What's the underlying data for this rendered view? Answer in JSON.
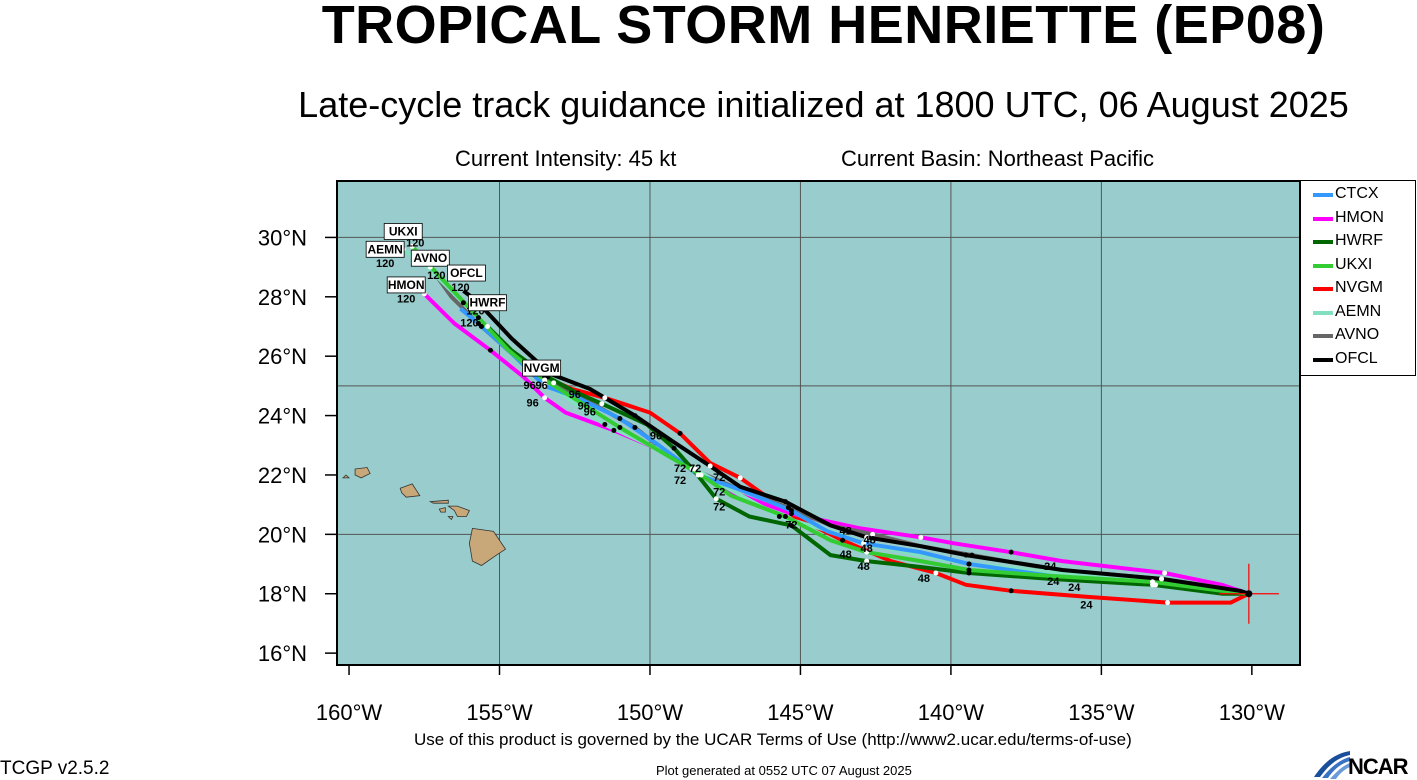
{
  "header": {
    "title": "TROPICAL STORM HENRIETTE (EP08)",
    "subtitle": "Late-cycle track guidance initialized at 1800 UTC, 06 August 2025",
    "intensity": "Current Intensity: 45 kt",
    "basin": "Current Basin: Northeast Pacific"
  },
  "axes": {
    "lon_ticks": [
      "160°W",
      "155°W",
      "150°W",
      "145°W",
      "140°W",
      "135°W",
      "130°W"
    ],
    "lat_ticks": [
      "30°N",
      "28°N",
      "26°N",
      "24°N",
      "22°N",
      "20°N",
      "18°N",
      "16°N"
    ],
    "lon_range": [
      -160.4,
      -128.4
    ],
    "lat_range": [
      15.6,
      31.9
    ]
  },
  "colors": {
    "ocean": "#99cccc",
    "land": "#c8a879",
    "CTCX": "#3399ff",
    "HMON": "#ff00ff",
    "HWRF": "#006600",
    "UKXI": "#33cc33",
    "NVGM": "#ff0000",
    "AEMN": "#80e0c0",
    "AVNO": "#666666",
    "OFCL": "#000000"
  },
  "legend": [
    {
      "label": "CTCX",
      "color": "#3399ff"
    },
    {
      "label": "HMON",
      "color": "#ff00ff"
    },
    {
      "label": "HWRF",
      "color": "#006600"
    },
    {
      "label": "UKXI",
      "color": "#33cc33"
    },
    {
      "label": "NVGM",
      "color": "#ff0000"
    },
    {
      "label": "AEMN",
      "color": "#80e0c0"
    },
    {
      "label": "AVNO",
      "color": "#666666"
    },
    {
      "label": "OFCL",
      "color": "#000000"
    }
  ],
  "storm_position": {
    "lon": -130.1,
    "lat": 18.0
  },
  "tracks": [
    {
      "name": "NVGM",
      "color": "#ff0000",
      "end_label": "NVGM",
      "points": [
        [
          -130.1,
          18.0
        ],
        [
          -130.7,
          17.7
        ],
        [
          -132.8,
          17.7
        ],
        [
          -135.5,
          17.9
        ],
        [
          -138.0,
          18.1
        ],
        [
          -139.5,
          18.3
        ],
        [
          -140.5,
          18.7
        ],
        [
          -142.0,
          19.1
        ],
        [
          -143.6,
          19.8
        ],
        [
          -145.2,
          20.6
        ],
        [
          -147.0,
          21.9
        ],
        [
          -148.0,
          22.4
        ],
        [
          -149.0,
          23.4
        ],
        [
          -150.0,
          24.1
        ],
        [
          -151.5,
          24.6
        ],
        [
          -152.6,
          24.9
        ],
        [
          -153.5,
          25.3
        ],
        [
          -154.0,
          25.4
        ]
      ]
    },
    {
      "name": "HMON",
      "color": "#ff00ff",
      "end_label": "HMON",
      "points": [
        [
          -130.1,
          18.0
        ],
        [
          -131.0,
          18.3
        ],
        [
          -132.9,
          18.7
        ],
        [
          -136.3,
          19.1
        ],
        [
          -138.0,
          19.4
        ],
        [
          -139.9,
          19.7
        ],
        [
          -141.0,
          19.9
        ],
        [
          -143.0,
          20.2
        ],
        [
          -145.3,
          20.7
        ],
        [
          -147.5,
          21.5
        ],
        [
          -148.5,
          22.2
        ],
        [
          -149.8,
          22.9
        ],
        [
          -151.2,
          23.5
        ],
        [
          -152.8,
          24.1
        ],
        [
          -153.5,
          24.6
        ],
        [
          -154.2,
          25.3
        ],
        [
          -155.3,
          26.2
        ],
        [
          -156.5,
          27.1
        ],
        [
          -157.5,
          28.1
        ]
      ]
    },
    {
      "name": "AVNO",
      "color": "#666666",
      "end_label": "AVNO",
      "points": [
        [
          -130.1,
          18.0
        ],
        [
          -131.0,
          18.2
        ],
        [
          -133.0,
          18.5
        ],
        [
          -136.5,
          18.8
        ],
        [
          -139.3,
          19.3
        ],
        [
          -141.0,
          19.6
        ],
        [
          -142.6,
          20.0
        ],
        [
          -144.0,
          20.3
        ],
        [
          -145.4,
          20.9
        ],
        [
          -147.0,
          21.5
        ],
        [
          -148.6,
          22.2
        ],
        [
          -149.5,
          22.8
        ],
        [
          -150.5,
          23.6
        ],
        [
          -151.9,
          24.4
        ],
        [
          -153.2,
          25.1
        ],
        [
          -154.6,
          26.1
        ],
        [
          -155.6,
          27.0
        ],
        [
          -156.6,
          28.0
        ],
        [
          -157.3,
          29.0
        ]
      ]
    },
    {
      "name": "AEMN",
      "color": "#80e0c0",
      "end_label": "AEMN",
      "points": [
        [
          -130.1,
          18.0
        ],
        [
          -131.0,
          18.1
        ],
        [
          -133.3,
          18.4
        ],
        [
          -136.3,
          18.7
        ],
        [
          -139.4,
          19.0
        ],
        [
          -141.0,
          19.3
        ],
        [
          -142.9,
          19.7
        ],
        [
          -144.0,
          20.1
        ],
        [
          -145.7,
          20.6
        ],
        [
          -147.5,
          21.6
        ],
        [
          -148.5,
          22.2
        ],
        [
          -149.8,
          22.9
        ],
        [
          -151.5,
          23.7
        ],
        [
          -152.9,
          24.7
        ],
        [
          -153.5,
          25.1
        ],
        [
          -154.8,
          26.3
        ],
        [
          -156.2,
          27.8
        ],
        [
          -157.4,
          29.0
        ],
        [
          -158.2,
          29.6
        ]
      ]
    },
    {
      "name": "CTCX",
      "color": "#3399ff",
      "end_label": "CTCX",
      "points": [
        [
          -130.1,
          18.0
        ],
        [
          -131.0,
          18.1
        ],
        [
          -133.2,
          18.3
        ],
        [
          -136.7,
          18.6
        ],
        [
          -139.4,
          19.0
        ],
        [
          -141.0,
          19.4
        ],
        [
          -142.9,
          19.7
        ],
        [
          -144.1,
          20.1
        ],
        [
          -145.3,
          20.8
        ],
        [
          -147.0,
          21.5
        ],
        [
          -148.4,
          22.0
        ],
        [
          -149.7,
          23.0
        ],
        [
          -151.0,
          23.9
        ],
        [
          -152.4,
          24.6
        ],
        [
          -153.5,
          25.0
        ],
        [
          -154.6,
          26.1
        ],
        [
          -155.7,
          27.1
        ],
        [
          -156.3,
          27.6
        ]
      ]
    },
    {
      "name": "HWRF",
      "color": "#006600",
      "end_label": "HWRF",
      "points": [
        [
          -130.1,
          18.0
        ],
        [
          -131.0,
          18.0
        ],
        [
          -133.3,
          18.3
        ],
        [
          -136.7,
          18.5
        ],
        [
          -139.4,
          18.7
        ],
        [
          -141.0,
          18.9
        ],
        [
          -142.8,
          19.1
        ],
        [
          -144.0,
          19.3
        ],
        [
          -145.3,
          20.3
        ],
        [
          -146.7,
          20.6
        ],
        [
          -147.8,
          21.2
        ],
        [
          -148.5,
          22.1
        ],
        [
          -149.2,
          22.9
        ],
        [
          -150.1,
          23.7
        ],
        [
          -151.6,
          24.4
        ],
        [
          -152.5,
          24.8
        ],
        [
          -153.4,
          25.3
        ],
        [
          -154.6,
          26.2
        ],
        [
          -155.4,
          27.0
        ]
      ]
    },
    {
      "name": "UKXI",
      "color": "#33cc33",
      "end_label": "UKXI",
      "points": [
        [
          -130.1,
          18.0
        ],
        [
          -131.0,
          18.1
        ],
        [
          -133.3,
          18.4
        ],
        [
          -136.7,
          18.6
        ],
        [
          -139.4,
          18.8
        ],
        [
          -141.0,
          19.1
        ],
        [
          -142.8,
          19.4
        ],
        [
          -144.0,
          19.8
        ],
        [
          -145.5,
          20.6
        ],
        [
          -147.3,
          21.3
        ],
        [
          -148.3,
          22.0
        ],
        [
          -149.5,
          22.7
        ],
        [
          -151.0,
          23.6
        ],
        [
          -152.4,
          24.5
        ],
        [
          -153.5,
          25.2
        ],
        [
          -154.7,
          26.2
        ],
        [
          -155.7,
          27.3
        ],
        [
          -157.0,
          28.7
        ],
        [
          -157.9,
          29.7
        ]
      ]
    },
    {
      "name": "OFCL",
      "color": "#000000",
      "end_label": "OFCL",
      "points": [
        [
          -130.1,
          18.0
        ],
        [
          -130.4,
          18.1
        ],
        [
          -133.0,
          18.5
        ],
        [
          -136.3,
          18.8
        ],
        [
          -139.5,
          19.3
        ],
        [
          -141.0,
          19.6
        ],
        [
          -142.8,
          19.9
        ],
        [
          -144.0,
          20.3
        ],
        [
          -145.5,
          21.1
        ],
        [
          -147.0,
          21.6
        ],
        [
          -148.0,
          22.3
        ],
        [
          -149.2,
          23.1
        ],
        [
          -150.5,
          24.0
        ],
        [
          -152.0,
          24.9
        ],
        [
          -153.3,
          25.4
        ],
        [
          -154.6,
          26.6
        ],
        [
          -155.8,
          27.9
        ],
        [
          -156.2,
          28.2
        ]
      ]
    }
  ],
  "track_labels": [
    {
      "text": "UKXI",
      "lon": -158.2,
      "lat": 30.2
    },
    {
      "text": "AEMN",
      "lon": -158.8,
      "lat": 29.6
    },
    {
      "text": "AVNO",
      "lon": -157.3,
      "lat": 29.3
    },
    {
      "text": "OFCL",
      "lon": -156.1,
      "lat": 28.8
    },
    {
      "text": "HMON",
      "lon": -158.1,
      "lat": 28.4
    },
    {
      "text": "HWRF",
      "lon": -155.4,
      "lat": 27.8
    },
    {
      "text": "NVGM",
      "lon": -153.6,
      "lat": 25.6
    }
  ],
  "hour_labels": [
    {
      "text": "120",
      "lon": -158.8,
      "lat": 29.0
    },
    {
      "text": "120",
      "lon": -157.8,
      "lat": 29.7
    },
    {
      "text": "120",
      "lon": -157.1,
      "lat": 28.6
    },
    {
      "text": "120",
      "lon": -156.3,
      "lat": 28.2
    },
    {
      "text": "120",
      "lon": -158.1,
      "lat": 27.8
    },
    {
      "text": "120",
      "lon": -156.0,
      "lat": 27.0
    },
    {
      "text": "120",
      "lon": -155.8,
      "lat": 27.4
    },
    {
      "text": "120",
      "lon": -153.8,
      "lat": 25.4
    },
    {
      "text": "96",
      "lon": -154.0,
      "lat": 24.9
    },
    {
      "text": "96",
      "lon": -153.6,
      "lat": 24.9
    },
    {
      "text": "96",
      "lon": -153.9,
      "lat": 24.3
    },
    {
      "text": "96",
      "lon": -152.5,
      "lat": 24.6
    },
    {
      "text": "96",
      "lon": -152.2,
      "lat": 24.2
    },
    {
      "text": "96",
      "lon": -152.0,
      "lat": 24.0
    },
    {
      "text": "96",
      "lon": -149.8,
      "lat": 23.2
    },
    {
      "text": "72",
      "lon": -149.0,
      "lat": 22.1
    },
    {
      "text": "72",
      "lon": -148.5,
      "lat": 22.1
    },
    {
      "text": "72",
      "lon": -149.0,
      "lat": 21.7
    },
    {
      "text": "72",
      "lon": -147.7,
      "lat": 21.8
    },
    {
      "text": "72",
      "lon": -147.7,
      "lat": 21.3
    },
    {
      "text": "72",
      "lon": -147.7,
      "lat": 20.8
    },
    {
      "text": "72",
      "lon": -145.3,
      "lat": 20.2
    },
    {
      "text": "48",
      "lon": -143.5,
      "lat": 20.0
    },
    {
      "text": "48",
      "lon": -142.7,
      "lat": 19.7
    },
    {
      "text": "48",
      "lon": -142.8,
      "lat": 19.4
    },
    {
      "text": "48",
      "lon": -143.5,
      "lat": 19.2
    },
    {
      "text": "48",
      "lon": -142.9,
      "lat": 18.8
    },
    {
      "text": "48",
      "lon": -140.9,
      "lat": 18.4
    },
    {
      "text": "24",
      "lon": -136.7,
      "lat": 18.8
    },
    {
      "text": "24",
      "lon": -136.6,
      "lat": 18.3
    },
    {
      "text": "24",
      "lon": -135.9,
      "lat": 18.1
    },
    {
      "text": "24",
      "lon": -135.5,
      "lat": 17.5
    }
  ],
  "footer": {
    "terms": "Use of this product is governed by the UCAR Terms of Use (http://www2.ucar.edu/terms-of-use)",
    "version": "TCGP v2.5.2",
    "generated": "Plot generated at 0552 UTC   07 August 2025",
    "logo": "NCAR"
  }
}
